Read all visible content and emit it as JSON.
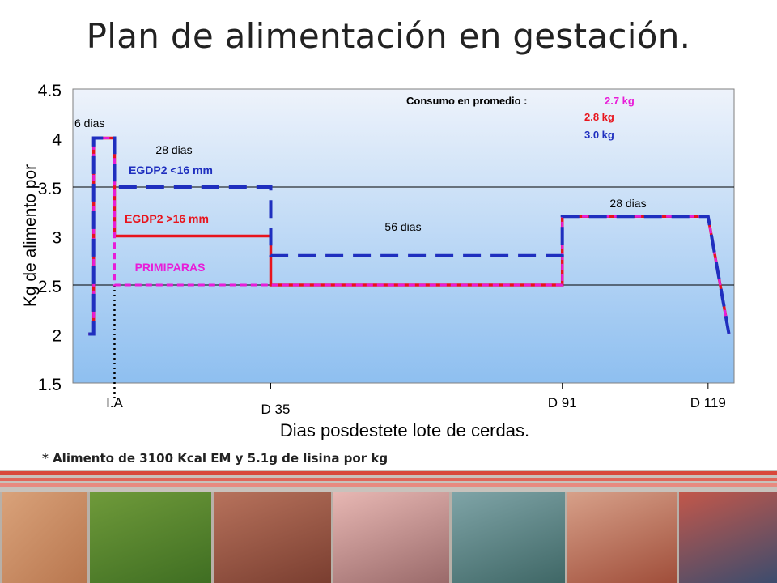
{
  "title": "Plan de alimentación en gestación.",
  "footnote": "* Alimento de 3100 Kcal EM y 5.1g de lisina por kg",
  "chart_data": {
    "type": "line",
    "ylabel": "Kg de alimento por",
    "xlabel": "Dias posdestete lote de cerdas.",
    "ylim": [
      1.5,
      4.5
    ],
    "yticks": [
      "1.5",
      "2",
      "2.5",
      "3",
      "3.5",
      "4",
      "4.5"
    ],
    "xlim": [
      -3,
      124
    ],
    "grid": true,
    "background": "blue gradient",
    "x_markers": [
      {
        "label": "I.A",
        "x": 5,
        "style": "dotted"
      },
      {
        "label": "D 35",
        "x": 35
      },
      {
        "label": "D 91",
        "x": 91
      },
      {
        "label": "D 119",
        "x": 119
      }
    ],
    "series": [
      {
        "name": "EGDP2 <16 mm",
        "color": "#1f2fbf",
        "points": [
          [
            0,
            2
          ],
          [
            1,
            2
          ],
          [
            1,
            4
          ],
          [
            5,
            4
          ],
          [
            5,
            3.5
          ],
          [
            35,
            3.5
          ],
          [
            35,
            2.8
          ],
          [
            91,
            2.8
          ],
          [
            91,
            3.2
          ],
          [
            119,
            3.2
          ],
          [
            123,
            2
          ]
        ]
      },
      {
        "name": "EGDP2 >16 mm",
        "color": "#e8141c",
        "points": [
          [
            0,
            2
          ],
          [
            1,
            2
          ],
          [
            1,
            4
          ],
          [
            5,
            4
          ],
          [
            5,
            3
          ],
          [
            35,
            3
          ],
          [
            35,
            2.5
          ],
          [
            91,
            2.5
          ],
          [
            91,
            3.2
          ],
          [
            119,
            3.2
          ],
          [
            123,
            2
          ]
        ]
      },
      {
        "name": "PRIMIPARAS",
        "color": "#e81cd8",
        "points": [
          [
            0,
            2
          ],
          [
            1,
            2
          ],
          [
            1,
            4
          ],
          [
            5,
            4
          ],
          [
            5,
            2.5
          ],
          [
            35,
            2.5
          ],
          [
            35,
            2.5
          ],
          [
            91,
            2.5
          ],
          [
            91,
            3.2
          ],
          [
            119,
            3.2
          ],
          [
            123,
            2
          ]
        ]
      }
    ],
    "annotations": [
      {
        "text": "6 dias",
        "color": "#000000"
      },
      {
        "text": "28 dias",
        "color": "#000000"
      },
      {
        "text": "EGDP2 <16 mm",
        "color": "#1f2fbf"
      },
      {
        "text": "EGDP2 >16 mm",
        "color": "#e8141c"
      },
      {
        "text": "PRIMIPARAS",
        "color": "#e81cd8"
      },
      {
        "text": "56 dias",
        "color": "#000000"
      },
      {
        "text": "28 dias",
        "color": "#000000"
      }
    ],
    "consumption": {
      "label": "Consumo en promedio :",
      "values": [
        {
          "text": "2.7 kg",
          "color": "#e81cd8"
        },
        {
          "text": "2.8 kg",
          "color": "#e8141c"
        },
        {
          "text": "3.0 kg",
          "color": "#1f2fbf"
        }
      ]
    }
  }
}
